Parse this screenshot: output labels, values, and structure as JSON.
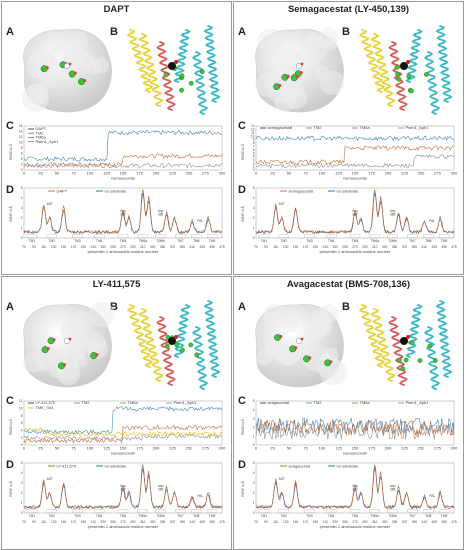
{
  "panels": [
    {
      "title": "DAPT",
      "legend_c": [
        "DAPT",
        "TM2",
        "TM6a",
        "Psen1_Aph1"
      ],
      "legend_d": [
        "DAPT",
        "no substrate"
      ],
      "c_ylabel": "RMSD in Å",
      "c_yticks": [
        "0",
        "2",
        "4",
        "6",
        "8",
        "10",
        "12",
        "14",
        "16"
      ]
    },
    {
      "title": "Semagacestat (LY-450,139)",
      "legend_c": [
        "semagacestat",
        "TM2",
        "TM6a",
        "Psen1_Aph1"
      ],
      "legend_d": [
        "semagacestat",
        "no substrate"
      ],
      "c_ylabel": "RMSD in Å",
      "c_yticks": [
        "0",
        "1",
        "2",
        "3",
        "4",
        "5",
        "6",
        "7",
        "8",
        "9",
        "10",
        "11",
        "12",
        "13"
      ]
    },
    {
      "title": "LY-411,575",
      "legend_c": [
        "LY-411,575",
        "TM2",
        "TM6a",
        "Psen1_Aph1",
        "TM6_TM1"
      ],
      "legend_d": [
        "LY-411,575",
        "no substrate"
      ],
      "c_ylabel": "RMSD in Å",
      "c_yticks": [
        "0",
        "2",
        "4",
        "6",
        "8",
        "10",
        "12"
      ]
    },
    {
      "title": "Avagacestat (BMS-708,136)",
      "legend_c": [
        "avagacestat",
        "TM2",
        "TM6a",
        "Psen1_Aph1"
      ],
      "legend_d": [
        "avagacestat",
        "no substrate"
      ],
      "c_ylabel": "RMSD in Å",
      "c_yticks": [
        "0",
        "1",
        "2",
        "3",
        "4",
        "5"
      ]
    }
  ],
  "sub_labels": {
    "a": "A",
    "b": "B",
    "c": "C",
    "d": "D"
  },
  "c_xlabel": "nanoseconds",
  "c_xticks": [
    "0",
    "25",
    "50",
    "75",
    "100",
    "125",
    "150",
    "175",
    "200",
    "225",
    "250",
    "275",
    "300"
  ],
  "d_xlabel": "presenilin 1 aminoacids residue number",
  "d_ylabel": "RMSF in Å",
  "d_xticks": [
    "70",
    "90",
    "110",
    "130",
    "150",
    "170",
    "190",
    "210",
    "230",
    "250",
    "270",
    "290",
    "310",
    "330",
    "350",
    "370",
    "390",
    "410",
    "435",
    "455",
    "475"
  ],
  "tm_labels": [
    "TM1",
    "TM2",
    "TM3",
    "TM4",
    "TM5",
    "TM6a",
    "TM6b",
    "TM7",
    "TM8",
    "TM9"
  ],
  "peak_labels": [
    "AST",
    "Asp 257",
    "Asp 385",
    "PAL"
  ],
  "colors": {
    "ligand_line": "#1f1f1f",
    "tm2": "#3a7fb0",
    "tm6a": "#c0622b",
    "psen_aph": "#8a8a8a",
    "tm6_tm1": "#e2b600",
    "rmsf_ligand": "#c0622b",
    "rmsf_nosub": "#2c5f90",
    "surface": "#e4e4e4",
    "ligand_green": "#3cc43c",
    "helix_yellow": "#e8d23a",
    "helix_cyan": "#38b8c8",
    "helix_red": "#d85a5a"
  }
}
